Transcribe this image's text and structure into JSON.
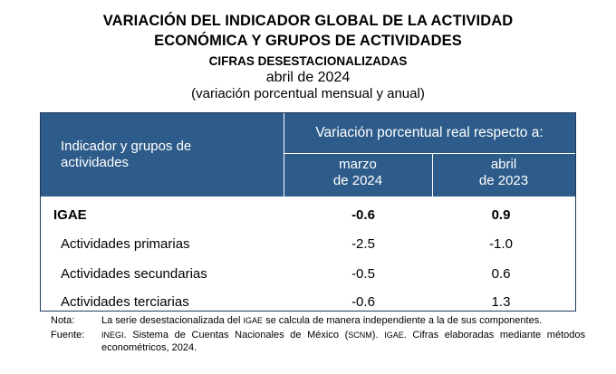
{
  "title": {
    "line1": "VARIACIÓN DEL INDICADOR GLOBAL DE LA ACTIVIDAD",
    "line2": "ECONÓMICA Y GRUPOS DE ACTIVIDADES",
    "line3": "CIFRAS DESESTACIONALIZADAS",
    "line4": "abril de 2024",
    "line5": "(variación porcentual mensual y anual)"
  },
  "table": {
    "header_left_1": "Indicador y grupos de",
    "header_left_2": "actividades",
    "header_right": "Variación porcentual real respecto a:",
    "col1_line1": "marzo",
    "col1_line2": "de 2024",
    "col2_line1": "abril",
    "col2_line2": "de 2023",
    "rows": [
      {
        "label": "IGAE",
        "v1": "-0.6",
        "v2": "0.9"
      },
      {
        "label": "Actividades primarias",
        "v1": "-2.5",
        "v2": "-1.0"
      },
      {
        "label": "Actividades secundarias",
        "v1": "-0.5",
        "v2": "0.6"
      },
      {
        "label": "Actividades terciarias",
        "v1": "-0.6",
        "v2": "1.3"
      }
    ]
  },
  "notes": {
    "nota_key": "Nota:",
    "nota_text_a": "La serie desestacionalizada del ",
    "nota_igae": "IGAE",
    "nota_text_b": " se calcula de manera independiente a la de sus componentes.",
    "fuente_key": "Fuente:",
    "fuente_inegi": "INEGI",
    "fuente_text_a": ". Sistema de Cuentas Nacionales de México (",
    "fuente_scnm": "SCNM",
    "fuente_text_b": "). ",
    "fuente_igae": "IGAE",
    "fuente_text_c": ". Cifras elaboradas mediante métodos econométricos, 2024."
  }
}
